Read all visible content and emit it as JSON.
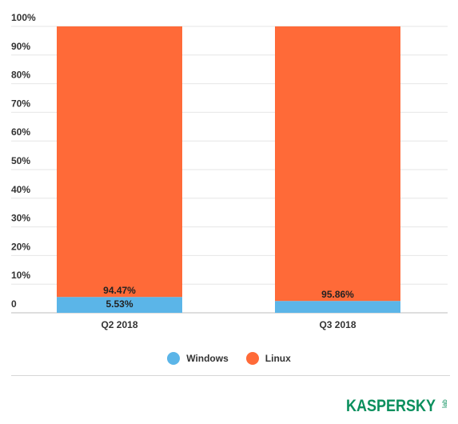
{
  "chart_data": {
    "type": "bar",
    "stacked": true,
    "categories": [
      "Q2 2018",
      "Q3 2018"
    ],
    "series": [
      {
        "name": "Windows",
        "values": [
          5.53,
          4.14
        ],
        "color": "#5BB5E8",
        "labels": [
          "5.53%",
          ""
        ]
      },
      {
        "name": "Linux",
        "values": [
          94.47,
          95.86
        ],
        "color": "#FF6A38",
        "labels": [
          "94.47%",
          "95.86%"
        ]
      }
    ],
    "y_ticks": [
      "0",
      "10%",
      "20%",
      "30%",
      "40%",
      "50%",
      "60%",
      "70%",
      "80%",
      "90%",
      "100%"
    ],
    "ylim": [
      0,
      100
    ],
    "grid": true,
    "legend_position": "bottom"
  },
  "legend": [
    {
      "label": "Windows",
      "color": "#5BB5E8"
    },
    {
      "label": "Linux",
      "color": "#FF6A38"
    }
  ],
  "brand": {
    "logo_text": "KASPERSKY",
    "logo_sub": "lab",
    "color": "#0A8F5D"
  }
}
